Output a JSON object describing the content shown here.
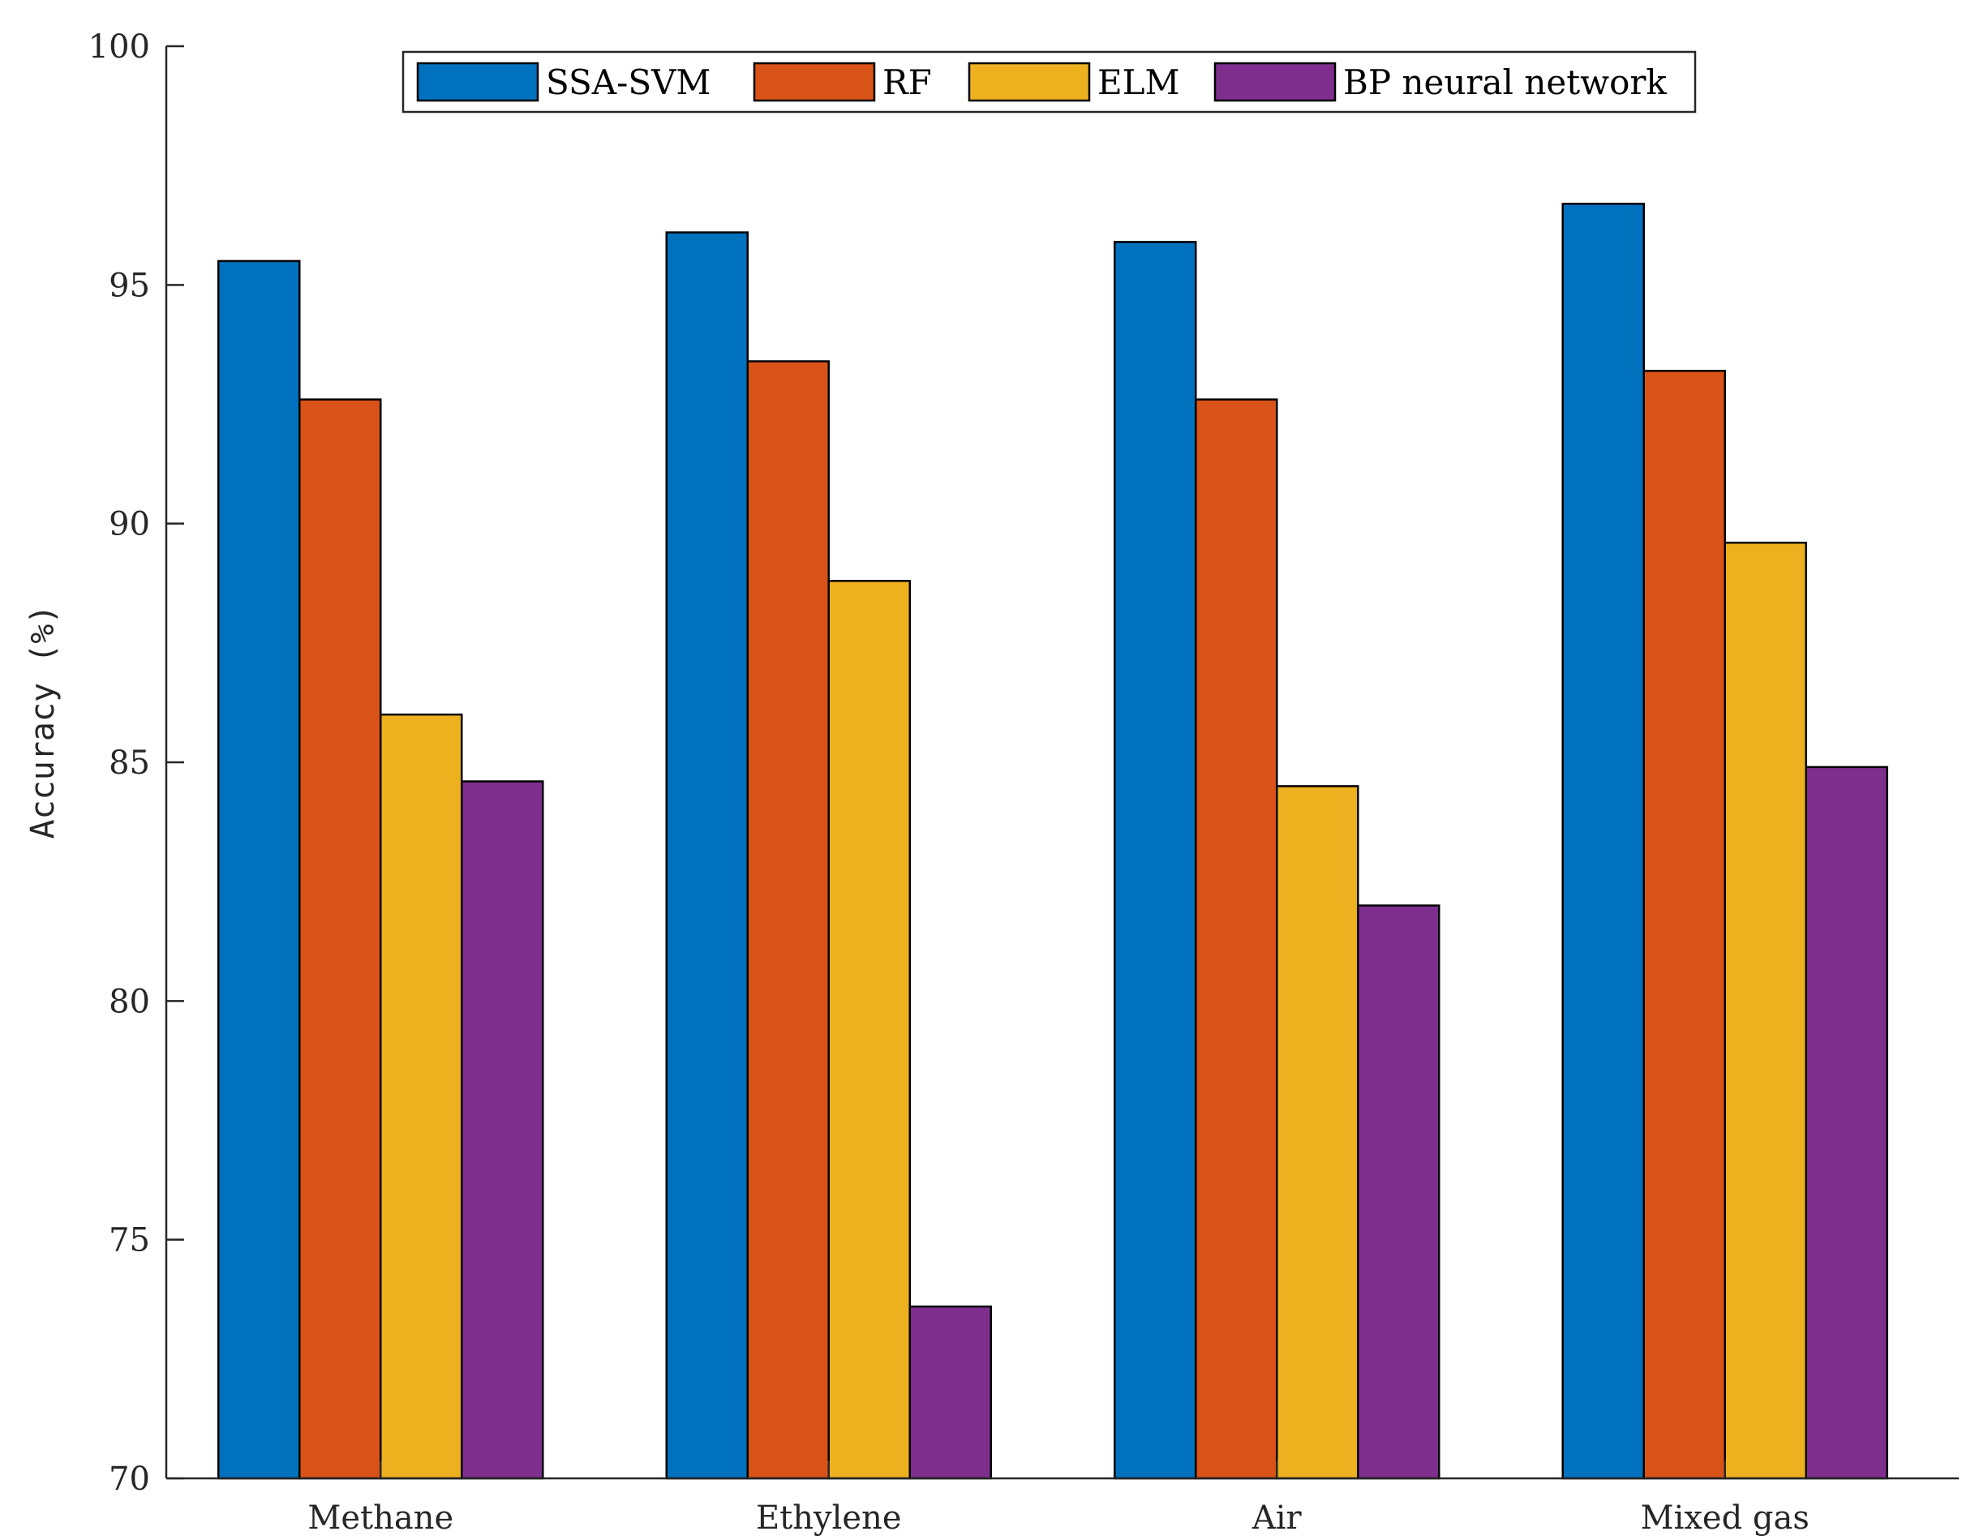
{
  "chart_data": {
    "type": "bar",
    "title": "",
    "xlabel": "",
    "ylabel": "Accuracy (%)",
    "ylim": [
      70,
      100
    ],
    "yticks": [
      "70",
      "75",
      "80",
      "85",
      "90",
      "95",
      "100"
    ],
    "categories": [
      "Methane",
      "Ethylene",
      "Air",
      "Mixed gas"
    ],
    "series": [
      {
        "name": "SSA-SVM",
        "color": "#0072BD",
        "values": [
          95.5,
          96.1,
          95.9,
          96.7
        ]
      },
      {
        "name": "RF",
        "color": "#D95319",
        "values": [
          92.6,
          93.4,
          92.6,
          93.2
        ]
      },
      {
        "name": "ELM",
        "color": "#EDB120",
        "values": [
          86.0,
          88.8,
          84.5,
          89.6
        ]
      },
      {
        "name": "BP neural network",
        "color": "#7E2F8E",
        "values": [
          84.6,
          73.6,
          82.0,
          84.9
        ]
      }
    ],
    "legend_position": "top-center",
    "grid": false
  }
}
